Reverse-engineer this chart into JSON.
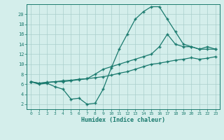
{
  "line1_x": [
    0,
    1,
    2,
    3,
    4,
    5,
    6,
    7,
    8,
    9,
    10,
    11,
    12,
    13,
    14,
    15,
    16,
    17,
    18,
    19,
    20,
    21,
    22,
    23
  ],
  "line1_y": [
    6.5,
    6.0,
    6.2,
    5.5,
    5.0,
    3.0,
    3.2,
    2.0,
    2.2,
    5.0,
    9.2,
    13.0,
    16.0,
    19.0,
    20.5,
    21.5,
    21.5,
    19.0,
    16.5,
    14.0,
    13.5,
    13.0,
    13.0,
    13.0
  ],
  "line2_x": [
    0,
    1,
    2,
    3,
    4,
    5,
    6,
    7,
    8,
    9,
    10,
    11,
    12,
    13,
    14,
    15,
    16,
    17,
    18,
    19,
    20,
    21,
    22,
    23
  ],
  "line2_y": [
    6.5,
    6.2,
    6.3,
    6.5,
    6.5,
    6.7,
    6.9,
    7.1,
    8.0,
    9.0,
    9.5,
    10.0,
    10.5,
    11.0,
    11.5,
    12.0,
    13.5,
    16.0,
    14.0,
    13.5,
    13.5,
    13.0,
    13.5,
    13.0
  ],
  "line3_x": [
    0,
    1,
    2,
    3,
    4,
    5,
    6,
    7,
    8,
    9,
    10,
    11,
    12,
    13,
    14,
    15,
    16,
    17,
    18,
    19,
    20,
    21,
    22,
    23
  ],
  "line3_y": [
    6.5,
    6.2,
    6.4,
    6.5,
    6.7,
    6.8,
    7.0,
    7.1,
    7.3,
    7.5,
    7.8,
    8.2,
    8.5,
    9.0,
    9.5,
    10.0,
    10.2,
    10.5,
    10.8,
    11.0,
    11.3,
    11.0,
    11.2,
    11.5
  ],
  "line_color": "#1a7a6e",
  "bg_color": "#d4eeeb",
  "grid_color": "#aacfcc",
  "xlabel": "Humidex (Indice chaleur)",
  "xlim": [
    -0.5,
    23.5
  ],
  "ylim": [
    1.0,
    22.0
  ],
  "xticks": [
    0,
    1,
    2,
    3,
    4,
    5,
    6,
    7,
    8,
    9,
    10,
    11,
    12,
    13,
    14,
    15,
    16,
    17,
    18,
    19,
    20,
    21,
    22,
    23
  ],
  "yticks": [
    2,
    4,
    6,
    8,
    10,
    12,
    14,
    16,
    18,
    20
  ],
  "marker": "+",
  "markersize": 3.5,
  "linewidth": 0.9
}
